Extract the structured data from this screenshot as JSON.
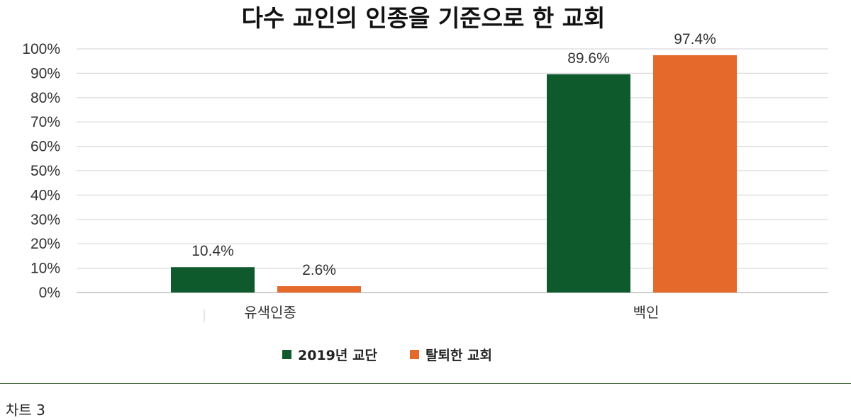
{
  "chart_data": {
    "type": "bar",
    "title": "다수 교인의 인종을 기준으로 한 교회",
    "categories": [
      "유색인종",
      "백인"
    ],
    "series": [
      {
        "name": "2019년 교단",
        "values": [
          10.4,
          89.6
        ],
        "labels": [
          "10.4%",
          "89.6%"
        ],
        "color": "#0e5a2d"
      },
      {
        "name": "탈퇴한 교회",
        "values": [
          2.6,
          97.4
        ],
        "labels": [
          "2.6%",
          "97.4%"
        ],
        "color": "#e5692a"
      }
    ],
    "ylim": [
      0,
      100
    ],
    "yticks": [
      "0%",
      "10%",
      "20%",
      "30%",
      "40%",
      "50%",
      "60%",
      "70%",
      "80%",
      "90%",
      "100%"
    ],
    "grid": true,
    "legend_position": "bottom",
    "xlabel": "",
    "ylabel": ""
  },
  "caption": "차트 3"
}
